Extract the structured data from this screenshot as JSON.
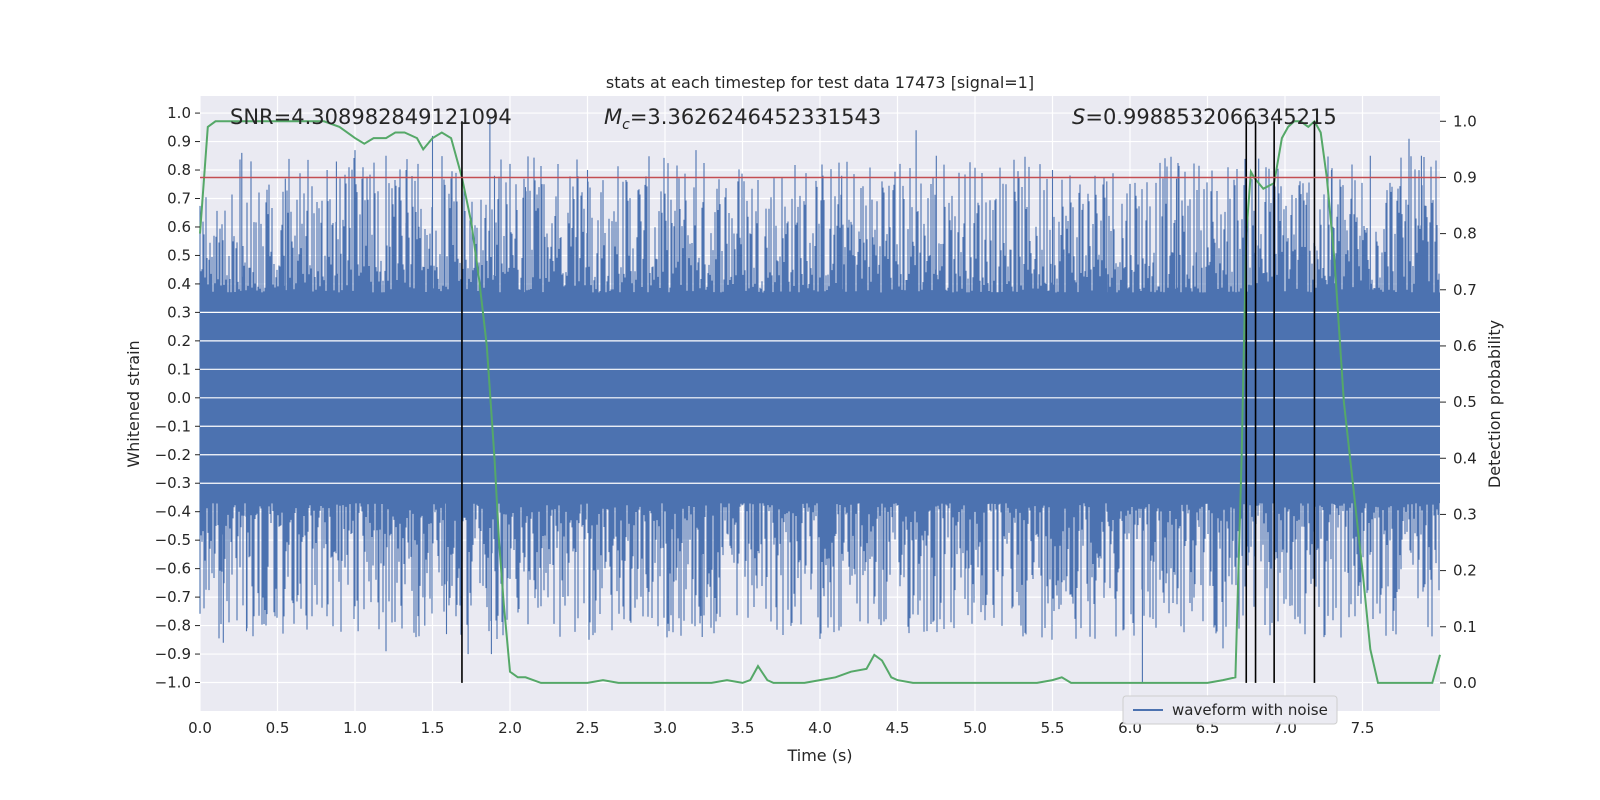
{
  "chart_data": {
    "type": "line",
    "title": "stats at each timestep for test data 17473 [signal=1]",
    "xlabel": "Time (s)",
    "ylabel": "Whitened strain",
    "y2label": "Detection probability",
    "xlim": [
      0.0,
      8.0
    ],
    "ylim": [
      -1.1,
      1.06
    ],
    "y2lim": [
      -0.05,
      1.045
    ],
    "xticks": [
      "0.0",
      "0.5",
      "1.0",
      "1.5",
      "2.0",
      "2.5",
      "3.0",
      "3.5",
      "4.0",
      "4.5",
      "5.0",
      "5.5",
      "6.0",
      "6.5",
      "7.0",
      "7.5"
    ],
    "yticks": [
      "1.0",
      "0.9",
      "0.8",
      "0.7",
      "0.6",
      "0.5",
      "0.4",
      "0.3",
      "0.2",
      "0.1",
      "0.0",
      "−0.1",
      "−0.2",
      "−0.3",
      "−0.4",
      "−0.5",
      "−0.6",
      "−0.7",
      "−0.8",
      "−0.9",
      "−1.0"
    ],
    "y2ticks": [
      "1.0",
      "0.9",
      "0.8",
      "0.7",
      "0.6",
      "0.5",
      "0.4",
      "0.3",
      "0.2",
      "0.1",
      "0.0"
    ],
    "grid": true,
    "legend": {
      "position": "bottom-right",
      "entries": [
        "waveform with noise"
      ]
    },
    "annotations": {
      "snr": "SNR=4.308982849121094",
      "mc_symbol": "M",
      "mc_sub": "c",
      "mc_value": "=3.3626246452331543",
      "s_symbol": "S",
      "s_value": "=0.9988532066345215"
    },
    "threshold": 0.9,
    "vlines": [
      1.69,
      6.75,
      6.81,
      6.93,
      7.19
    ],
    "series": [
      {
        "name": "waveform with noise",
        "color": "#4c72b0",
        "envelope": {
          "band_top": 0.37,
          "band_bottom": -0.37,
          "typical_peak_max": 0.85,
          "spikes_x": [
            0.27,
            0.55,
            0.82,
            0.88,
            1.0,
            1.2,
            1.33,
            1.5,
            1.87,
            1.9,
            2.1,
            2.5,
            3.2,
            3.47,
            4.14,
            4.4,
            4.62,
            4.75,
            5.2,
            5.5,
            5.85,
            6.3,
            6.75,
            6.83,
            7.3,
            7.55,
            7.8,
            7.88
          ],
          "spikes_y": [
            0.86,
            0.77,
            0.8,
            0.83,
            0.87,
            0.85,
            0.8,
            0.92,
            0.98,
            0.78,
            0.74,
            0.8,
            0.87,
            0.76,
            0.78,
            0.76,
            0.94,
            0.85,
            0.75,
            0.8,
            0.76,
            0.77,
            0.89,
            0.84,
            0.8,
            0.85,
            0.91,
            0.85
          ],
          "dips_x": [
            0.15,
            0.3,
            1.02,
            1.2,
            1.45,
            1.59,
            1.73,
            1.88,
            2.78,
            3.24,
            6.08,
            6.6
          ],
          "dips_y": [
            -0.86,
            -0.82,
            -0.82,
            -0.89,
            -0.8,
            -0.83,
            -0.9,
            -0.9,
            -0.79,
            -0.84,
            -1.0,
            -0.88
          ]
        }
      },
      {
        "name": "Detection probability",
        "color": "#55a868",
        "x": [
          0.0,
          0.05,
          0.1,
          0.2,
          0.3,
          0.4,
          0.5,
          0.6,
          0.7,
          0.8,
          0.9,
          1.0,
          1.06,
          1.12,
          1.2,
          1.26,
          1.32,
          1.4,
          1.44,
          1.5,
          1.56,
          1.62,
          1.69,
          1.75,
          1.8,
          1.85,
          1.9,
          1.93,
          1.96,
          2.0,
          2.05,
          2.1,
          2.2,
          2.3,
          2.4,
          2.5,
          2.6,
          2.7,
          2.8,
          2.9,
          3.0,
          3.1,
          3.2,
          3.3,
          3.4,
          3.5,
          3.55,
          3.6,
          3.66,
          3.7,
          3.8,
          3.9,
          4.0,
          4.1,
          4.2,
          4.3,
          4.35,
          4.4,
          4.46,
          4.5,
          4.6,
          4.7,
          4.8,
          4.9,
          5.0,
          5.1,
          5.2,
          5.3,
          5.4,
          5.5,
          5.56,
          5.62,
          5.7,
          5.8,
          5.9,
          6.0,
          6.1,
          6.2,
          6.3,
          6.4,
          6.5,
          6.6,
          6.68,
          6.72,
          6.75,
          6.78,
          6.8,
          6.86,
          6.93,
          6.98,
          7.02,
          7.06,
          7.1,
          7.15,
          7.19,
          7.23,
          7.27,
          7.32,
          7.38,
          7.44,
          7.5,
          7.55,
          7.6,
          7.65,
          7.7,
          7.8,
          7.9,
          7.95,
          8.0
        ],
        "values": [
          0.8,
          0.99,
          1.0,
          1.0,
          1.0,
          1.0,
          1.0,
          1.0,
          1.0,
          1.0,
          0.99,
          0.97,
          0.96,
          0.97,
          0.97,
          0.98,
          0.98,
          0.97,
          0.95,
          0.97,
          0.98,
          0.97,
          0.9,
          0.82,
          0.72,
          0.6,
          0.4,
          0.25,
          0.14,
          0.02,
          0.01,
          0.01,
          0.0,
          0.0,
          0.0,
          0.0,
          0.005,
          0.0,
          0.0,
          0.0,
          0.0,
          0.0,
          0.0,
          0.0,
          0.005,
          0.0,
          0.005,
          0.03,
          0.005,
          0.0,
          0.0,
          0.0,
          0.005,
          0.01,
          0.02,
          0.025,
          0.05,
          0.04,
          0.01,
          0.005,
          0.0,
          0.0,
          0.0,
          0.0,
          0.0,
          0.0,
          0.0,
          0.0,
          0.0,
          0.005,
          0.01,
          0.0,
          0.0,
          0.0,
          0.0,
          0.0,
          0.0,
          0.0,
          0.0,
          0.0,
          0.0,
          0.005,
          0.01,
          0.4,
          0.8,
          0.91,
          0.9,
          0.88,
          0.89,
          0.97,
          0.99,
          1.0,
          1.0,
          0.99,
          1.0,
          0.98,
          0.9,
          0.75,
          0.5,
          0.35,
          0.2,
          0.06,
          0.0,
          0.0,
          0.0,
          0.0,
          0.0,
          0.0,
          0.05
        ]
      }
    ],
    "colors": {
      "background": "#eaeaf2",
      "grid": "#ffffff",
      "waveform": "#4c72b0",
      "probability": "#55a868",
      "threshold": "#c44e52",
      "vline": "#000000",
      "text": "#262626"
    }
  }
}
